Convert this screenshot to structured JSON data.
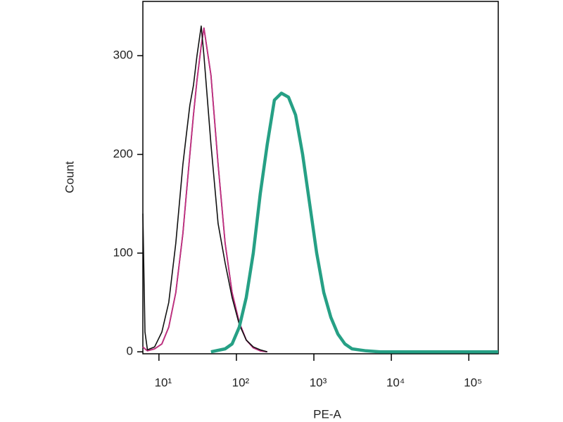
{
  "chart_data": {
    "type": "line",
    "xlabel": "PE-A",
    "ylabel": "Count",
    "xscale": "log",
    "xlim": [
      6.2,
      240000
    ],
    "xticks": [
      {
        "value": 10,
        "label": "10¹"
      },
      {
        "value": 100,
        "label": "10²"
      },
      {
        "value": 1000,
        "label": "10³"
      },
      {
        "value": 10000,
        "label": "10⁴"
      },
      {
        "value": 100000,
        "label": "10⁵"
      }
    ],
    "ylim": [
      -2,
      355
    ],
    "yticks": [
      0,
      100,
      200,
      300
    ],
    "series": [
      {
        "color": "#7a2a6e",
        "width": 1.8,
        "x": [
          6.2,
          6.6,
          7.1,
          8.8,
          10.9,
          13.4,
          16.5,
          20.4,
          22.6,
          25.1,
          27.9,
          31,
          35.1,
          38.1,
          47,
          58,
          71.5,
          88,
          108.7,
          134,
          165,
          203,
          250
        ],
        "values": [
          5,
          3,
          1,
          3,
          8,
          25,
          60,
          120,
          160,
          200,
          240,
          275,
          310,
          328,
          280,
          190,
          110,
          60,
          30,
          12,
          4,
          1,
          0
        ]
      },
      {
        "color": "#c0307f",
        "width": 1.8,
        "x": [
          6.2,
          6.6,
          7.1,
          8.8,
          10.9,
          13.4,
          16.5,
          20.4,
          22.6,
          25.1,
          27.9,
          31,
          35.1,
          38.1,
          47,
          58,
          71.5,
          88,
          108.7,
          134,
          165,
          203,
          250
        ],
        "values": [
          5,
          3,
          1,
          3,
          8,
          25,
          60,
          120,
          160,
          200,
          240,
          275,
          310,
          328,
          280,
          190,
          110,
          60,
          30,
          12,
          4,
          1,
          0
        ]
      },
      {
        "color": "#111111",
        "width": 1.6,
        "x": [
          6.2,
          6.6,
          7.1,
          8.8,
          10.9,
          13.4,
          16.5,
          20.4,
          22.6,
          25.1,
          27.9,
          31,
          35.1,
          38.1,
          47,
          58,
          71.5,
          88,
          108.7,
          134,
          165,
          203,
          250
        ],
        "values": [
          140,
          20,
          2,
          5,
          20,
          50,
          110,
          190,
          220,
          250,
          270,
          300,
          330,
          300,
          210,
          130,
          90,
          55,
          28,
          12,
          5,
          2,
          0
        ]
      },
      {
        "color": "#26a085",
        "width": 4.5,
        "x": [
          47,
          71.5,
          88,
          109,
          134,
          165,
          203,
          250,
          309,
          381,
          470,
          580,
          715,
          882,
          1088,
          1342,
          1655,
          2041,
          2518,
          3105,
          4724,
          7186,
          240000
        ],
        "values": [
          0,
          3,
          8,
          25,
          55,
          100,
          160,
          210,
          255,
          262,
          258,
          240,
          200,
          150,
          100,
          60,
          35,
          18,
          8,
          3,
          1,
          0,
          0
        ]
      }
    ]
  }
}
